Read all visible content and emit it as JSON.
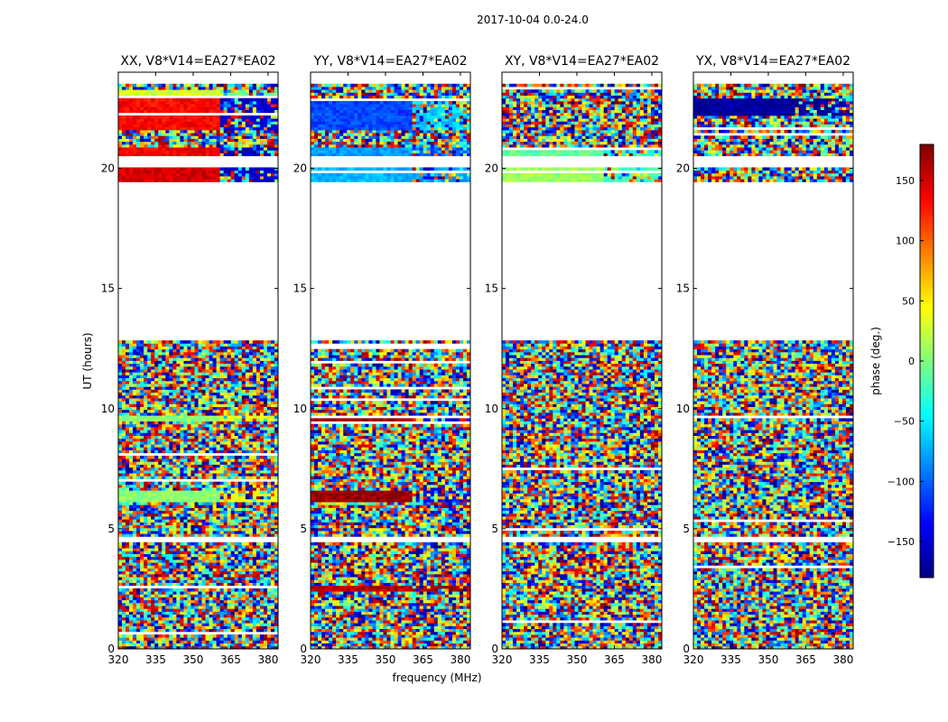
{
  "figure": {
    "suptitle": "2017-10-04 0.0-24.0"
  },
  "chart_data": {
    "type": "heatmap",
    "description_free": true,
    "panels": [
      {
        "title": "XX, V8*V14=EA27*EA02",
        "pol": "XX",
        "coherent_phase": [
          [
            19.4,
            20.0,
            150,
            -150
          ],
          [
            20.4,
            20.8,
            140,
            -160
          ],
          [
            21.6,
            22.9,
            135,
            -150
          ],
          [
            6.1,
            6.5,
            5,
            40
          ],
          [
            9.4,
            9.6,
            5,
            40
          ],
          [
            22.8,
            23.2,
            30,
            -10
          ]
        ]
      },
      {
        "title": "YY, V8*V14=EA27*EA02",
        "pol": "YY",
        "coherent_phase": [
          [
            19.4,
            20.0,
            -70,
            -80
          ],
          [
            20.4,
            20.8,
            -80,
            -110
          ],
          [
            21.6,
            22.9,
            -110,
            -60
          ],
          [
            6.1,
            6.5,
            170,
            -130
          ],
          [
            9.4,
            9.6,
            170,
            -130
          ],
          [
            2.4,
            2.6,
            160,
            170
          ]
        ]
      },
      {
        "title": "XY, V8*V14=EA27*EA02",
        "pol": "XY",
        "coherent_phase": [
          [
            20.4,
            20.8,
            -10,
            -30
          ],
          [
            19.4,
            20.0,
            10,
            -20
          ]
        ]
      },
      {
        "title": "YX, V8*V14=EA27*EA02",
        "pol": "YX",
        "coherent_phase": [
          [
            22.2,
            22.9,
            -170,
            -170
          ]
        ]
      }
    ],
    "x": {
      "label": "frequency (MHz)",
      "range": [
        320,
        384
      ],
      "ticks": [
        320,
        335,
        350,
        365,
        380
      ]
    },
    "y": {
      "label": "UT (hours)",
      "range": [
        0,
        24
      ],
      "ticks": [
        0,
        5,
        10,
        15,
        20
      ]
    },
    "flagged_gaps_hours": [
      [
        12.8,
        19.4
      ],
      [
        4.4,
        4.6
      ],
      [
        20.0,
        20.4
      ],
      [
        23.5,
        23.9
      ]
    ],
    "colorbar": {
      "label": "phase (deg.)",
      "range": [
        -180,
        180
      ],
      "ticks": [
        -150,
        -100,
        -50,
        0,
        50,
        100,
        150
      ],
      "tick_labels": [
        "−150",
        "−100",
        "−50",
        "0",
        "50",
        "100",
        "150"
      ],
      "colormap": "jet"
    }
  }
}
